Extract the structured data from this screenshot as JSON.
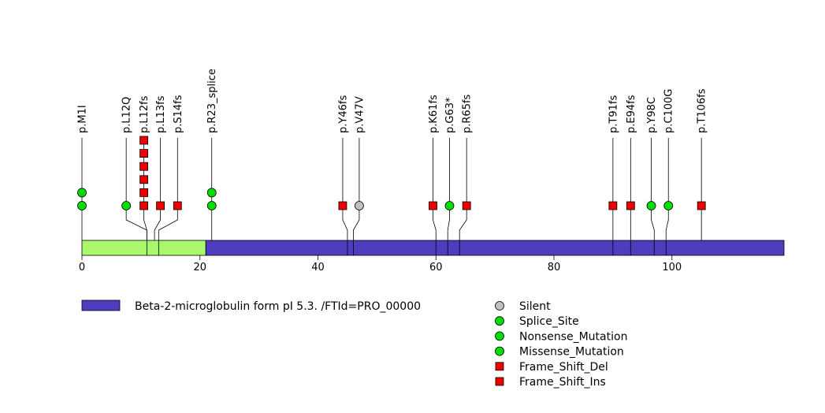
{
  "chart_data": {
    "type": "lollipop",
    "xlim": [
      0,
      119
    ],
    "x_ticks": [
      "0",
      "20",
      "40",
      "60",
      "80",
      "100"
    ],
    "x_tick_values": [
      0,
      20,
      40,
      60,
      80,
      100
    ],
    "regions": [
      {
        "name": "",
        "start": 0,
        "end": 21,
        "color": "#a9f76c"
      },
      {
        "name": "Beta-2-microglobulin form pI 5.3. /FTId=PRO_00000",
        "start": 21,
        "end": 119,
        "color": "#4e3dbf"
      }
    ],
    "region_edges": [
      11,
      13,
      45,
      46,
      60,
      62,
      64,
      90,
      93,
      97,
      99
    ],
    "mutations": [
      {
        "label": "p.M1I",
        "pos": 0,
        "label_x": 0,
        "base_x": 0,
        "markers": [
          {
            "shape": "circle",
            "color": "#00dd00"
          },
          {
            "shape": "circle",
            "color": "#00dd00"
          }
        ]
      },
      {
        "label": "p.L12Q",
        "pos": 11,
        "label_x": 7.5,
        "base_x": 11,
        "markers": [
          {
            "shape": "circle",
            "color": "#00dd00"
          }
        ]
      },
      {
        "label": "p.L12fs",
        "pos": 11,
        "label_x": 10.5,
        "base_x": 11,
        "markers": [
          {
            "shape": "square",
            "color": "#ee0000"
          },
          {
            "shape": "square",
            "color": "#ee0000"
          },
          {
            "shape": "square",
            "color": "#ee0000"
          },
          {
            "shape": "square",
            "color": "#ee0000"
          },
          {
            "shape": "square",
            "color": "#ee0000"
          },
          {
            "shape": "square",
            "color": "#ee0000"
          }
        ]
      },
      {
        "label": "p.L13fs",
        "pos": 12,
        "label_x": 13.3,
        "base_x": 12.3,
        "markers": [
          {
            "shape": "square",
            "color": "#ee0000"
          }
        ]
      },
      {
        "label": "p.S14fs",
        "pos": 13,
        "label_x": 16.2,
        "base_x": 13,
        "markers": [
          {
            "shape": "square",
            "color": "#ee0000"
          }
        ]
      },
      {
        "label": "p.R23_splice",
        "pos": 22,
        "label_x": 22,
        "base_x": 22,
        "markers": [
          {
            "shape": "circle",
            "color": "#00dd00"
          },
          {
            "shape": "circle",
            "color": "#00dd00"
          }
        ]
      },
      {
        "label": "p.Y46fs",
        "pos": 45,
        "label_x": 44.2,
        "base_x": 45,
        "markers": [
          {
            "shape": "square",
            "color": "#ee0000"
          }
        ]
      },
      {
        "label": "p.V47V",
        "pos": 46,
        "label_x": 47,
        "base_x": 46,
        "markers": [
          {
            "shape": "circle",
            "color": "#c0c0c0"
          }
        ]
      },
      {
        "label": "p.K61fs",
        "pos": 60,
        "label_x": 59.5,
        "base_x": 60,
        "markers": [
          {
            "shape": "square",
            "color": "#ee0000"
          }
        ]
      },
      {
        "label": "p.G63*",
        "pos": 62,
        "label_x": 62.3,
        "base_x": 62,
        "markers": [
          {
            "shape": "circle",
            "color": "#00dd00"
          }
        ]
      },
      {
        "label": "p.R65fs",
        "pos": 64,
        "label_x": 65.2,
        "base_x": 64,
        "markers": [
          {
            "shape": "square",
            "color": "#ee0000"
          }
        ]
      },
      {
        "label": "p.T91fs",
        "pos": 90,
        "label_x": 90,
        "base_x": 90,
        "markers": [
          {
            "shape": "square",
            "color": "#ee0000"
          }
        ]
      },
      {
        "label": "p.E94fs",
        "pos": 93,
        "label_x": 93,
        "base_x": 93,
        "markers": [
          {
            "shape": "square",
            "color": "#ee0000"
          }
        ]
      },
      {
        "label": "p.Y98C",
        "pos": 97,
        "label_x": 96.5,
        "base_x": 97,
        "markers": [
          {
            "shape": "circle",
            "color": "#00dd00"
          }
        ]
      },
      {
        "label": "p.C100G",
        "pos": 99,
        "label_x": 99.4,
        "base_x": 99,
        "markers": [
          {
            "shape": "circle",
            "color": "#00dd00"
          }
        ]
      },
      {
        "label": "p.T106fs",
        "pos": 105,
        "label_x": 105,
        "base_x": 105,
        "markers": [
          {
            "shape": "square",
            "color": "#ee0000"
          }
        ]
      }
    ],
    "legend": {
      "region": {
        "label": "Beta-2-microglobulin form pI 5.3. /FTId=PRO_00000",
        "color": "#4e3dbf"
      },
      "types": [
        {
          "label": "Silent",
          "shape": "circle",
          "color": "#c0c0c0"
        },
        {
          "label": "Splice_Site",
          "shape": "circle",
          "color": "#00dd00"
        },
        {
          "label": "Nonsense_Mutation",
          "shape": "circle",
          "color": "#00dd00"
        },
        {
          "label": "Missense_Mutation",
          "shape": "circle",
          "color": "#00dd00"
        },
        {
          "label": "Frame_Shift_Del",
          "shape": "square",
          "color": "#ee0000"
        },
        {
          "label": "Frame_Shift_Ins",
          "shape": "square",
          "color": "#ee0000"
        }
      ]
    }
  }
}
